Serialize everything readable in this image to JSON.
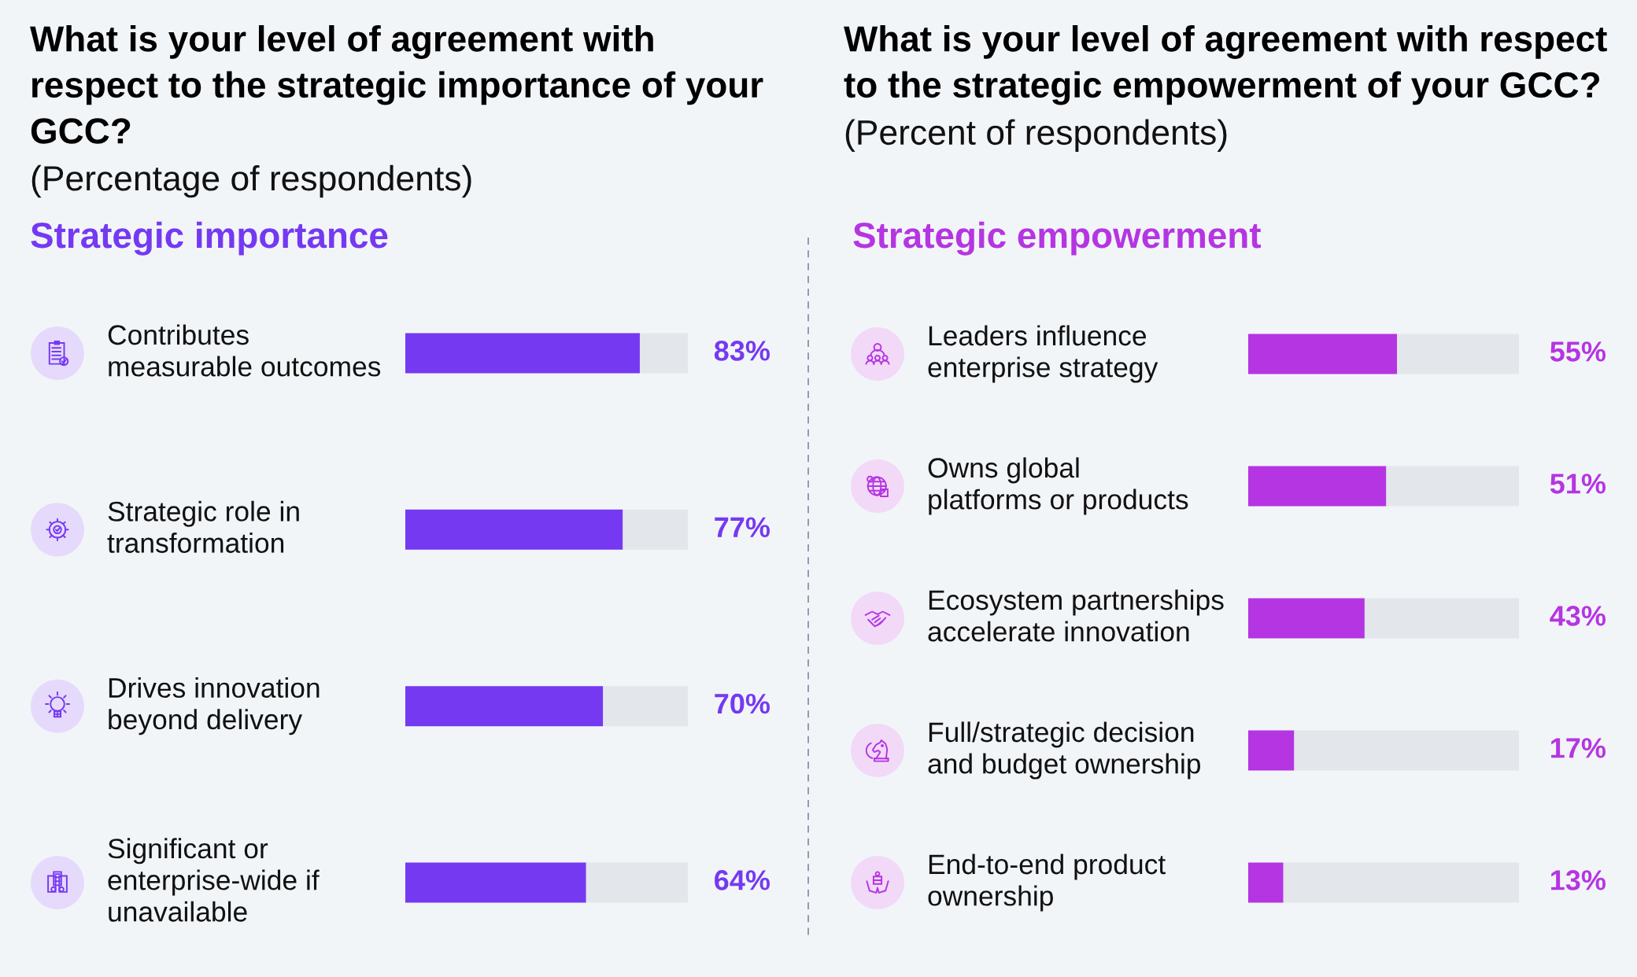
{
  "chart_data": [
    {
      "type": "bar",
      "orientation": "horizontal",
      "stacked": true,
      "title": "What is your level of agreement with\nrespect to the strategic importance of your\nGCC?",
      "subtitle": "(Percentage of respondents)",
      "annotations": [
        "Strategic importance"
      ],
      "categories": [
        "Contributes\nmeasurable outcomes",
        "Strategic role in\ntransformation",
        "Drives innovation\nbeyond delivery",
        "Significant or\nenterprise-wide if\nunavailable"
      ],
      "series": [
        {
          "color": "#7539f2",
          "values": [
            83,
            77,
            70,
            64
          ],
          "value_labels": [
            "83%",
            "77%",
            "70%",
            "64%"
          ]
        },
        {
          "color": "#e3e6ea",
          "values": [
            17,
            23,
            30,
            36
          ]
        }
      ],
      "xlim": [
        0,
        100
      ],
      "tick_labels": "y"
    },
    {
      "type": "bar",
      "orientation": "horizontal",
      "stacked": true,
      "title": "What is your level of agreement with respect\nto the strategic empowerment of your GCC?",
      "subtitle": "(Percent of respondents)",
      "annotations": [
        "Strategic empowerment"
      ],
      "categories": [
        "Leaders influence\nenterprise strategy",
        "Owns global\nplatforms or products",
        "Ecosystem partnerships\naccelerate innovation",
        "Full/strategic decision\nand budget ownership",
        "End-to-end product\nownership"
      ],
      "series": [
        {
          "color": "#b535e2",
          "values": [
            55,
            51,
            43,
            17,
            13
          ],
          "value_labels": [
            "55%",
            "51%",
            "43%",
            "17%",
            "13%"
          ]
        },
        {
          "color": "#e3e6ea",
          "values": [
            45,
            49,
            57,
            83,
            87
          ]
        }
      ],
      "xlim": [
        0,
        100
      ],
      "tick_labels": "y"
    }
  ]
}
